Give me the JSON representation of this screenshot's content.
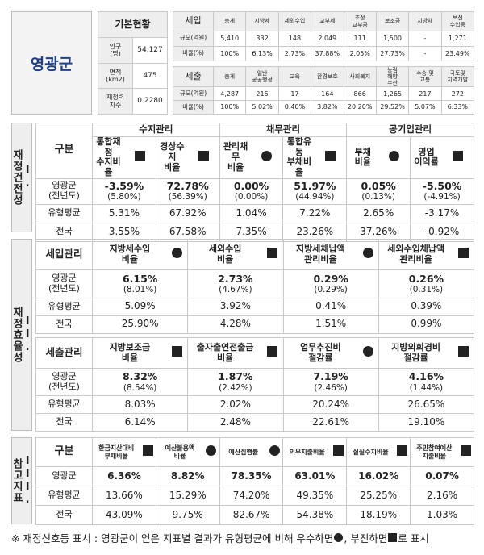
{
  "region_name": "영광군",
  "basic": {
    "title": "기본현황",
    "rows": [
      {
        "label": "인구\n(명)",
        "value": "54,127"
      },
      {
        "label": "면적\n(km2)",
        "value": "475"
      },
      {
        "label": "재정력\n지수",
        "value": "0.2280"
      }
    ]
  },
  "revenue": {
    "title": "세입",
    "headers": [
      "총계",
      "지방세",
      "세외수입",
      "교부세",
      "조정\n교부금",
      "보조금",
      "지방채",
      "보전\n수입등"
    ],
    "rows": [
      {
        "label": "규모(억원)",
        "values": [
          "5,410",
          "332",
          "148",
          "2,049",
          "111",
          "1,500",
          "-",
          "1,271"
        ]
      },
      {
        "label": "비율(%)",
        "values": [
          "100%",
          "6.13%",
          "2.73%",
          "37.88%",
          "2.05%",
          "27.73%",
          "-",
          "23.49%"
        ]
      }
    ]
  },
  "expenditure": {
    "title": "세출",
    "headers": [
      "총계",
      "일반\n공공행정",
      "교육",
      "환경보호",
      "사회복지",
      "농림\n해양\n수산",
      "수송 및\n교통",
      "국토및\n지역개발"
    ],
    "rows": [
      {
        "label": "규모(억원)",
        "values": [
          "4,287",
          "215",
          "17",
          "164",
          "866",
          "1,265",
          "217",
          "272"
        ]
      },
      {
        "label": "비율(%)",
        "values": [
          "100%",
          "5.02%",
          "0.40%",
          "3.82%",
          "20.20%",
          "29.52%",
          "5.07%",
          "6.33%"
        ]
      }
    ]
  },
  "section1": {
    "label": "I.\n재정건전성",
    "gubun": "구분",
    "groups": [
      "수지관리",
      "채무관리",
      "공기업관리"
    ],
    "indicators": [
      {
        "name": "통합재정\n수지비율",
        "mark": "square"
      },
      {
        "name": "경상수지\n비율",
        "mark": "square"
      },
      {
        "name": "관리채무\n비율",
        "mark": "circle"
      },
      {
        "name": "통합유동\n부채비율",
        "mark": "square"
      },
      {
        "name": "부채\n비율",
        "mark": "circle"
      },
      {
        "name": "영업\n이익률",
        "mark": "square"
      }
    ],
    "row_labels": [
      "영광군\n(전년도)",
      "유형평균",
      "전국"
    ],
    "county": [
      "-3.59%",
      "72.78%",
      "0.00%",
      "51.97%",
      "0.05%",
      "-5.50%"
    ],
    "prev": [
      "(5.80%)",
      "(56.39%)",
      "(0.00%)",
      "(44.94%)",
      "(0.13%)",
      "(-4.91%)"
    ],
    "avg": [
      "5.31%",
      "67.92%",
      "1.04%",
      "7.22%",
      "2.65%",
      "-3.17%"
    ],
    "national": [
      "3.55%",
      "67.58%",
      "7.35%",
      "23.26%",
      "37.26%",
      "-0.92%"
    ]
  },
  "section2": {
    "label": "II.\n재정효율성",
    "revenue_mgmt": {
      "title": "세입관리",
      "indicators": [
        {
          "name": "지방세수입\n비율",
          "mark": "circle"
        },
        {
          "name": "세외수입\n비율",
          "mark": "square"
        },
        {
          "name": "지방세체납액\n관리비율",
          "mark": "circle"
        },
        {
          "name": "세외수입체납액\n관리비율",
          "mark": "square"
        }
      ],
      "county": [
        "6.15%",
        "2.73%",
        "0.29%",
        "0.26%"
      ],
      "prev": [
        "(8.01%)",
        "(4.67%)",
        "(0.29%)",
        "(0.31%)"
      ],
      "avg": [
        "5.09%",
        "3.92%",
        "0.41%",
        "0.39%"
      ],
      "national": [
        "25.90%",
        "4.28%",
        "1.51%",
        "0.99%"
      ]
    },
    "expend_mgmt": {
      "title": "세출관리",
      "indicators": [
        {
          "name": "지방보조금\n비율",
          "mark": "square"
        },
        {
          "name": "출자출연전출금\n비율",
          "mark": "square"
        },
        {
          "name": "업무추진비\n절감률",
          "mark": "circle"
        },
        {
          "name": "지방의회경비\n절감률",
          "mark": "square"
        }
      ],
      "county": [
        "8.32%",
        "1.87%",
        "7.19%",
        "4.16%"
      ],
      "prev": [
        "(8.54%)",
        "(2.42%)",
        "(2.46%)",
        "(1.44%)"
      ],
      "avg": [
        "8.03%",
        "2.02%",
        "20.24%",
        "26.65%"
      ],
      "national": [
        "6.14%",
        "2.48%",
        "22.61%",
        "19.10%"
      ]
    },
    "row_labels": [
      "영광군\n(전년도)",
      "유형평균",
      "전국"
    ]
  },
  "section3": {
    "label": "III.\n참고지표",
    "gubun": "구분",
    "indicators": [
      {
        "name": "한금지산대비\n부채비율",
        "mark": "square"
      },
      {
        "name": "예산불용액\n비율",
        "mark": "circle"
      },
      {
        "name": "예산집행률",
        "mark": "circle"
      },
      {
        "name": "의무지출비율",
        "mark": "square"
      },
      {
        "name": "실질수지비율",
        "mark": "square"
      },
      {
        "name": "주민참여예산\n지출비율",
        "mark": "square"
      }
    ],
    "row_labels": [
      "영광군",
      "유형평균",
      "전국"
    ],
    "county": [
      "6.36%",
      "8.82%",
      "78.35%",
      "63.01%",
      "16.02%",
      "0.07%"
    ],
    "avg": [
      "13.66%",
      "15.29%",
      "74.20%",
      "49.35%",
      "25.25%",
      "2.16%"
    ],
    "national": [
      "43.09%",
      "9.75%",
      "82.67%",
      "54.38%",
      "18.19%",
      "1.03%"
    ]
  },
  "footnote_pre": "※ 재정신호등 표시 : 영광군이 얻은 지표별 결과가 유형평균에 비해 우수하면 ",
  "footnote_mid": ", 부진하면 ",
  "footnote_post": "로 표시"
}
